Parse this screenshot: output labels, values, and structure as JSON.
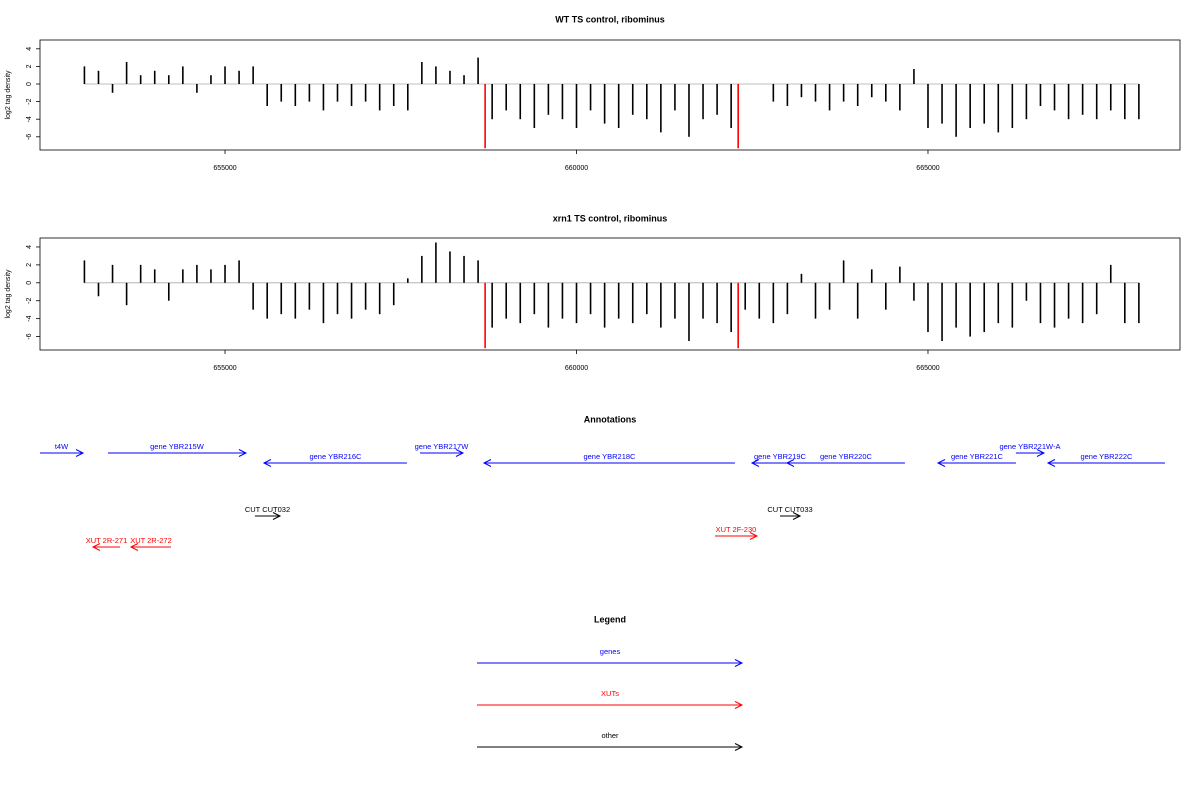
{
  "chart_data": [
    {
      "type": "bar",
      "title": "WT TS control, ribominus",
      "ylabel": "log2 tag density",
      "xlim": [
        652368,
        668585
      ],
      "xticks": [
        655000,
        660000,
        665000
      ],
      "ylim": [
        -7.5,
        5
      ],
      "yticks": [
        -6,
        -4,
        -2,
        0,
        2,
        4
      ],
      "series": [
        {
          "color": "#000000",
          "x": [
            653000,
            653200,
            653400,
            653600,
            653800,
            654000,
            654200,
            654400,
            654600,
            654800,
            655000,
            655200,
            655400,
            655600,
            655800,
            656000,
            656200,
            656400,
            656600,
            656800,
            657000,
            657200,
            657400,
            657600,
            657800,
            658000,
            658200,
            658400,
            658600,
            658800,
            659000,
            659200,
            659400,
            659600,
            659800,
            660000,
            660200,
            660400,
            660600,
            660800,
            661000,
            661200,
            661400,
            661600,
            661800,
            662000,
            662200,
            662400,
            662600,
            662800,
            663000,
            663200,
            663400,
            663600,
            663800,
            664000,
            664200,
            664400,
            664600,
            664800,
            665000,
            665200,
            665400,
            665600,
            665800,
            666000,
            666200,
            666400,
            666600,
            666800,
            667000,
            667200,
            667400,
            667600,
            667800,
            668000
          ],
          "values": [
            2,
            1.5,
            -1,
            2.5,
            1,
            1.5,
            1,
            2,
            -1,
            1,
            2,
            1.5,
            2,
            -2.5,
            -2,
            -2.5,
            -2,
            -3,
            -2,
            -2.5,
            -2,
            -3,
            -2.5,
            -3,
            2.5,
            2,
            1.5,
            1,
            3,
            -4,
            -3,
            -4,
            -5,
            -3.5,
            -4,
            -5,
            -3,
            -4.5,
            -5,
            -3.5,
            -4,
            -5.5,
            -3,
            -6,
            -4,
            -3.5,
            -5,
            null,
            null,
            -2,
            -2.5,
            -1.5,
            -2,
            -3,
            -2,
            -2.5,
            -1.5,
            -2,
            -3,
            1.7,
            -5,
            -4.5,
            -6,
            -5,
            -4.5,
            -5.5,
            -5,
            -4,
            -2.5,
            -3,
            -4,
            -3.5,
            -4,
            -3,
            -4,
            -4
          ]
        },
        {
          "color": "#ff0000",
          "x": [
            658700,
            662300
          ],
          "values": [
            -7.3,
            -7.3
          ]
        }
      ]
    },
    {
      "type": "bar",
      "title": "xrn1 TS control, ribominus",
      "ylabel": "log2 tag density",
      "xlim": [
        652368,
        668585
      ],
      "xticks": [
        655000,
        660000,
        665000
      ],
      "ylim": [
        -7.5,
        5
      ],
      "yticks": [
        -6,
        -4,
        -2,
        0,
        2,
        4
      ],
      "series": [
        {
          "color": "#000000",
          "x": [
            653000,
            653200,
            653400,
            653600,
            653800,
            654000,
            654200,
            654400,
            654600,
            654800,
            655000,
            655200,
            655400,
            655600,
            655800,
            656000,
            656200,
            656400,
            656600,
            656800,
            657000,
            657200,
            657400,
            657600,
            657800,
            658000,
            658200,
            658400,
            658600,
            658800,
            659000,
            659200,
            659400,
            659600,
            659800,
            660000,
            660200,
            660400,
            660600,
            660800,
            661000,
            661200,
            661400,
            661600,
            661800,
            662000,
            662200,
            662400,
            662600,
            662800,
            663000,
            663200,
            663400,
            663600,
            663800,
            664000,
            664200,
            664400,
            664600,
            664800,
            665000,
            665200,
            665400,
            665600,
            665800,
            666000,
            666200,
            666400,
            666600,
            666800,
            667000,
            667200,
            667400,
            667600,
            667800,
            668000
          ],
          "values": [
            2.5,
            -1.5,
            2,
            -2.5,
            2,
            1.5,
            -2,
            1.5,
            2,
            1.5,
            2,
            2.5,
            -3,
            -4,
            -3.5,
            -4,
            -3,
            -4.5,
            -3.5,
            -4,
            -3,
            -3.5,
            -2.5,
            0.5,
            3,
            4.5,
            3.5,
            3,
            2.5,
            -5,
            -4,
            -4.5,
            -3.5,
            -5,
            -4,
            -4.5,
            -3.5,
            -5,
            -4,
            -4.5,
            -3.5,
            -5,
            -4,
            -6.5,
            -4,
            -4.5,
            -5.5,
            -3,
            -4,
            -4.5,
            -3.5,
            1,
            -4,
            -3,
            2.5,
            -4,
            1.5,
            -3,
            1.8,
            -2,
            -5.5,
            -6.5,
            -5,
            -6,
            -5.5,
            -4.5,
            -5,
            -2,
            -4.5,
            -5,
            -4,
            -4.5,
            -3.5,
            2,
            -4.5,
            -4.5
          ]
        },
        {
          "color": "#ff0000",
          "x": [
            658700,
            662300
          ],
          "values": [
            -7.3,
            -7.3
          ]
        }
      ]
    }
  ],
  "annotations": {
    "title": "Annotations",
    "features": [
      {
        "label": "t4W",
        "type": "gene",
        "strand": "+",
        "color": "#0000ff",
        "start": 652368,
        "end": 652980
      },
      {
        "label": "gene YBR215W",
        "type": "gene",
        "strand": "+",
        "color": "#0000ff",
        "start": 653335,
        "end": 655298
      },
      {
        "label": "gene YBR216C",
        "type": "gene",
        "strand": "-",
        "color": "#0000ff",
        "start": 655554,
        "end": 657588
      },
      {
        "label": "gene YBR217W",
        "type": "gene",
        "strand": "+",
        "color": "#0000ff",
        "start": 657773,
        "end": 658385
      },
      {
        "label": "gene YBR218C",
        "type": "gene",
        "strand": "-",
        "color": "#0000ff",
        "start": 658684,
        "end": 662254
      },
      {
        "label": "gene YBR219C",
        "type": "gene",
        "strand": "-",
        "color": "#0000ff",
        "start": 662496,
        "end": 663293
      },
      {
        "label": "gene YBR220C",
        "type": "gene",
        "strand": "-",
        "color": "#0000ff",
        "start": 662994,
        "end": 664672
      },
      {
        "label": "gene YBR221C",
        "type": "gene",
        "strand": "-",
        "color": "#0000ff",
        "start": 665142,
        "end": 666251
      },
      {
        "label": "gene YBR221W-A",
        "type": "gene",
        "strand": "+",
        "color": "#0000ff",
        "start": 666251,
        "end": 666650
      },
      {
        "label": "gene YBR222C",
        "type": "gene",
        "strand": "-",
        "color": "#0000ff",
        "start": 666707,
        "end": 668371
      },
      {
        "label": "CUT CUT032",
        "type": "other",
        "strand": "+",
        "color": "#000000",
        "start": 655426,
        "end": 655782
      },
      {
        "label": "CUT CUT033",
        "type": "other",
        "strand": "+",
        "color": "#000000",
        "start": 662895,
        "end": 663180
      },
      {
        "label": "XUT 2R-271",
        "type": "XUT",
        "strand": "-",
        "color": "#ff0000",
        "start": 653122,
        "end": 653506
      },
      {
        "label": "XUT 2R-272",
        "type": "XUT",
        "strand": "-",
        "color": "#ff0000",
        "start": 653662,
        "end": 654231
      },
      {
        "label": "XUT 2F-230",
        "type": "XUT",
        "strand": "+",
        "color": "#ff0000",
        "start": 661970,
        "end": 662567
      }
    ]
  },
  "legend": {
    "title": "Legend",
    "items": [
      {
        "label": "genes",
        "color": "#0000ff"
      },
      {
        "label": "XUTs",
        "color": "#ff0000"
      },
      {
        "label": "other",
        "color": "#000000"
      }
    ]
  }
}
